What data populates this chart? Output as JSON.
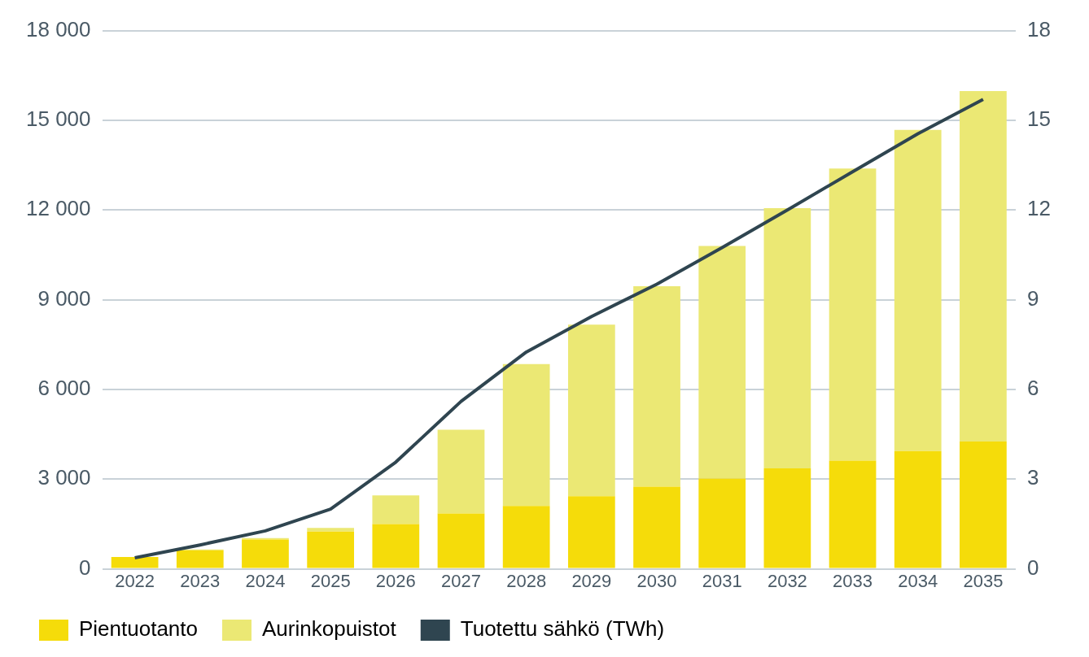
{
  "chart_data": {
    "type": "bar",
    "stacked": true,
    "categories": [
      "2022",
      "2023",
      "2024",
      "2025",
      "2026",
      "2027",
      "2028",
      "2029",
      "2030",
      "2031",
      "2032",
      "2033",
      "2034",
      "2035"
    ],
    "series": [
      {
        "name": "Pientuotanto",
        "color": "#f5dc0a",
        "values": [
          400,
          620,
          980,
          1250,
          1500,
          1850,
          2100,
          2430,
          2750,
          3020,
          3360,
          3620,
          3940,
          4260
        ]
      },
      {
        "name": "Aurinkopuistot",
        "color": "#ebe874",
        "values": [
          0,
          30,
          50,
          120,
          960,
          2800,
          4750,
          5740,
          6700,
          7780,
          8700,
          9770,
          10740,
          11720
        ]
      },
      {
        "name": "Tuotettu sähkö (TWh)",
        "type": "line",
        "axis": "y2",
        "color": "#2f4550",
        "values": [
          0.37,
          0.8,
          1.27,
          2.0,
          3.57,
          5.6,
          7.25,
          8.44,
          9.52,
          10.74,
          12.0,
          13.28,
          14.55,
          15.7
        ]
      }
    ],
    "ylim": [
      0,
      18000
    ],
    "yticks": [
      {
        "value": 0,
        "label": "0"
      },
      {
        "value": 3000,
        "label": "3 000"
      },
      {
        "value": 6000,
        "label": "6 000"
      },
      {
        "value": 9000,
        "label": "9 000"
      },
      {
        "value": 12000,
        "label": "12 000"
      },
      {
        "value": 15000,
        "label": "15 000"
      },
      {
        "value": 18000,
        "label": "18 000"
      }
    ],
    "y2lim": [
      0,
      18
    ],
    "y2ticks": [
      0,
      3,
      6,
      9,
      12,
      15,
      18
    ],
    "grid": "y",
    "legend": "bottom left",
    "marker": "none"
  }
}
